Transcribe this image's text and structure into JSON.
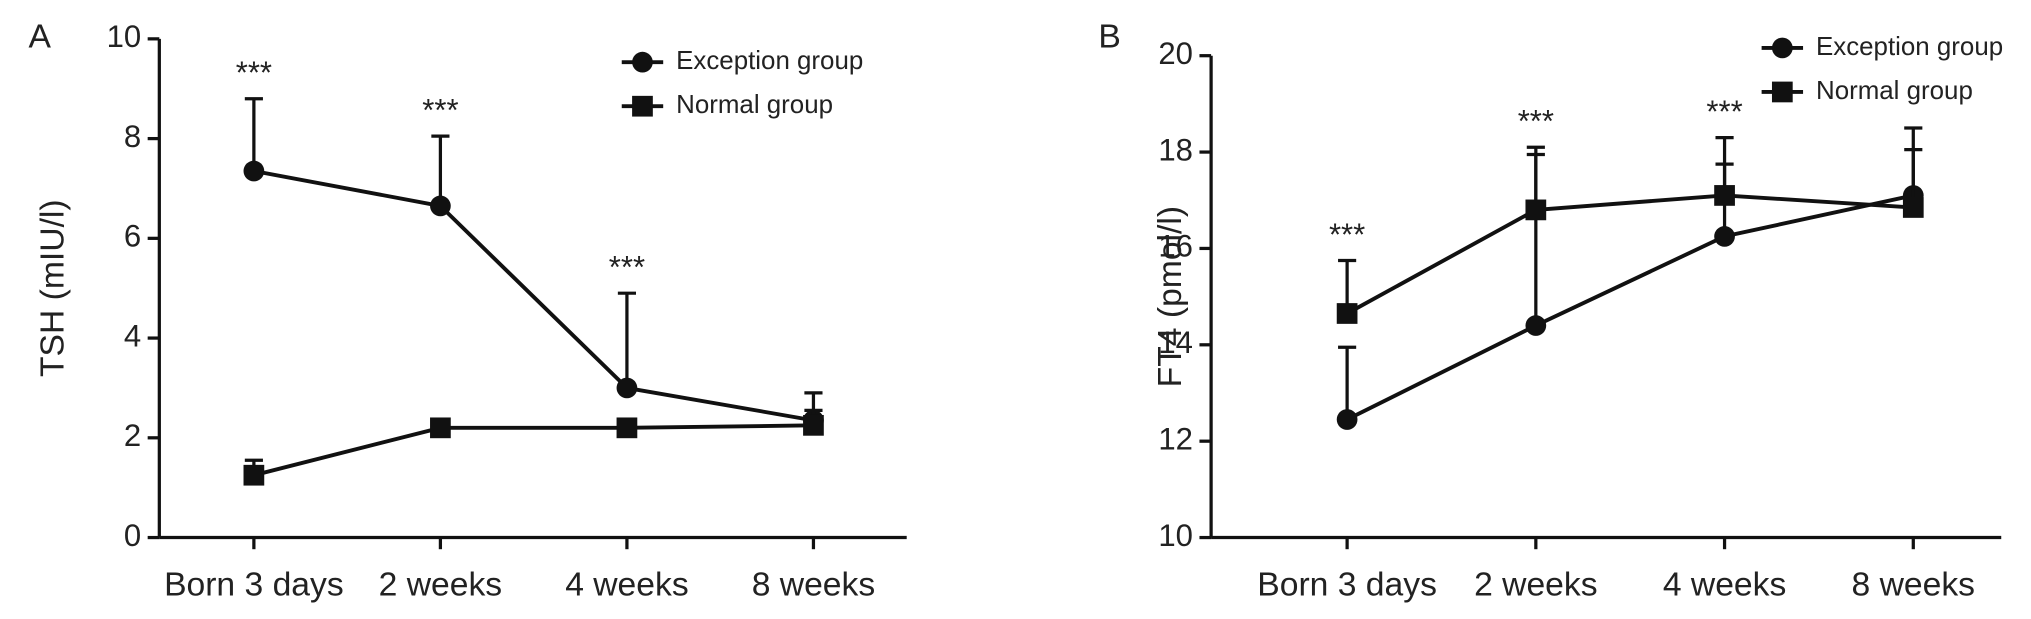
{
  "chart_data": [
    {
      "type": "line",
      "panel_label": "A",
      "ylabel": "TSH (mIU/l)",
      "categories": [
        "Born 3 days",
        "2 weeks",
        "4 weeks",
        "8 weeks"
      ],
      "series": [
        {
          "name": "Exception group",
          "color": "#111111",
          "marker": "circle",
          "values": [
            7.35,
            6.65,
            3.0,
            2.35
          ],
          "errors": [
            1.45,
            1.4,
            1.9,
            0.55
          ]
        },
        {
          "name": "Normal group",
          "color": "#111111",
          "marker": "square",
          "values": [
            1.25,
            2.2,
            2.2,
            2.25
          ],
          "errors": [
            0.3,
            0.1,
            0.1,
            0.3
          ]
        }
      ],
      "significance": [
        "***",
        "***",
        "***",
        null
      ],
      "ylim": [
        0,
        10
      ],
      "yticks": [
        0,
        2,
        4,
        6,
        8,
        10
      ],
      "legend": "upper right"
    },
    {
      "type": "line",
      "panel_label": "B",
      "ylabel": "FT4 (pmol/l)",
      "categories": [
        "Born 3 days",
        "2 weeks",
        "4 weeks",
        "8 weeks"
      ],
      "series": [
        {
          "name": "Exception group",
          "color": "#111111",
          "marker": "circle",
          "values": [
            12.45,
            14.4,
            16.25,
            17.1
          ],
          "errors": [
            1.5,
            3.7,
            1.5,
            1.4
          ]
        },
        {
          "name": "Normal group",
          "color": "#111111",
          "marker": "square",
          "values": [
            14.65,
            16.8,
            17.1,
            16.85
          ],
          "errors": [
            1.1,
            1.15,
            1.2,
            1.2
          ]
        }
      ],
      "significance": [
        "***",
        "***",
        "***",
        null
      ],
      "ylim": [
        10,
        20
      ],
      "yticks": [
        10,
        12,
        14,
        16,
        18,
        20
      ],
      "legend": "upper right"
    }
  ]
}
